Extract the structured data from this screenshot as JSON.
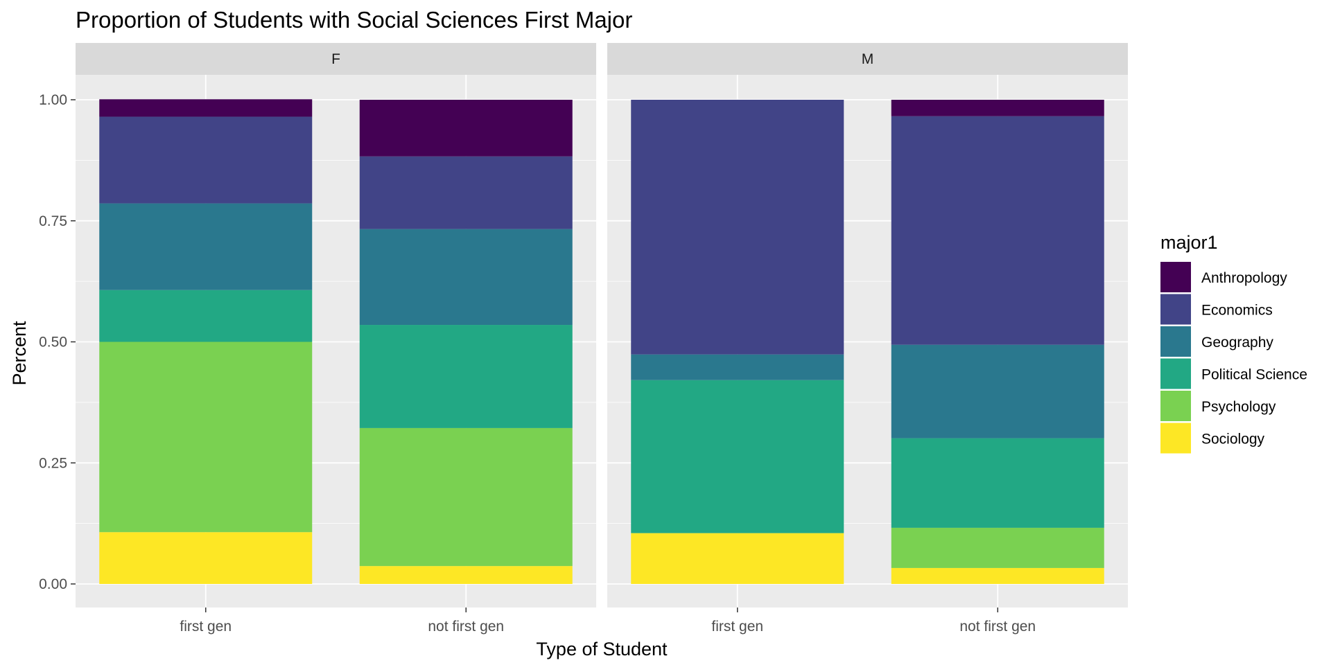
{
  "chart_data": {
    "type": "bar",
    "stacked": true,
    "title": "Proportion of Students with Social Sciences First Major",
    "xlabel": "Type of Student",
    "ylabel": "Percent",
    "ylim": [
      0,
      1
    ],
    "y_ticks": [
      "0.00",
      "0.25",
      "0.50",
      "0.75",
      "1.00"
    ],
    "y_tick_values": [
      0,
      0.25,
      0.5,
      0.75,
      1.0
    ],
    "grid": true,
    "legend": {
      "title": "major1",
      "position": "right",
      "entries": [
        {
          "name": "Anthropology",
          "color": "#440154"
        },
        {
          "name": "Economics",
          "color": "#414487"
        },
        {
          "name": "Geography",
          "color": "#2A788E"
        },
        {
          "name": "Political Science",
          "color": "#22A884"
        },
        {
          "name": "Psychology",
          "color": "#7AD151"
        },
        {
          "name": "Sociology",
          "color": "#FDE725"
        }
      ]
    },
    "stack_order_bottom_to_top": [
      "Sociology",
      "Psychology",
      "Political Science",
      "Geography",
      "Economics",
      "Anthropology"
    ],
    "categories": [
      "first gen",
      "not first gen"
    ],
    "facets": [
      {
        "label": "F",
        "bars": [
          {
            "category": "first gen",
            "values": {
              "Sociology": 0.107,
              "Psychology": 0.393,
              "Political Science": 0.107,
              "Geography": 0.179,
              "Economics": 0.179,
              "Anthropology": 0.036
            }
          },
          {
            "category": "not first gen",
            "values": {
              "Sociology": 0.037,
              "Psychology": 0.285,
              "Political Science": 0.213,
              "Geography": 0.198,
              "Economics": 0.15,
              "Anthropology": 0.117
            }
          }
        ]
      },
      {
        "label": "M",
        "bars": [
          {
            "category": "first gen",
            "values": {
              "Sociology": 0.105,
              "Psychology": 0.0,
              "Political Science": 0.316,
              "Geography": 0.053,
              "Economics": 0.526,
              "Anthropology": 0.0
            }
          },
          {
            "category": "not first gen",
            "values": {
              "Sociology": 0.033,
              "Psychology": 0.083,
              "Political Science": 0.185,
              "Geography": 0.193,
              "Economics": 0.472,
              "Anthropology": 0.034
            }
          }
        ]
      }
    ]
  }
}
